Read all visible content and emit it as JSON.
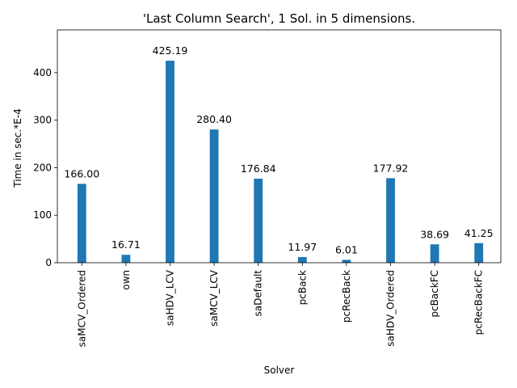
{
  "chart_data": {
    "type": "bar",
    "title": "'Last Column Search', 1 Sol. in 5 dimensions.",
    "xlabel": "Solver",
    "ylabel": "Time in sec.*E-4",
    "categories": [
      "saMCV_Ordered",
      "own",
      "saHDV_LCV",
      "saMCV_LCV",
      "saDefault",
      "pcBack",
      "pcRecBack",
      "saHDV_Ordered",
      "pcBackFC",
      "pcRecBackFC"
    ],
    "values": [
      166.0,
      16.71,
      425.19,
      280.4,
      176.84,
      11.97,
      6.01,
      177.92,
      38.69,
      41.25
    ],
    "value_labels": [
      "166.00",
      "16.71",
      "425.19",
      "280.40",
      "176.84",
      "11.97",
      "6.01",
      "177.92",
      "38.69",
      "41.25"
    ],
    "yticks": [
      0,
      100,
      200,
      300,
      400
    ],
    "ylim": [
      0,
      490
    ],
    "grid": false,
    "legend": "none",
    "bar_color": "#1f77b4"
  }
}
